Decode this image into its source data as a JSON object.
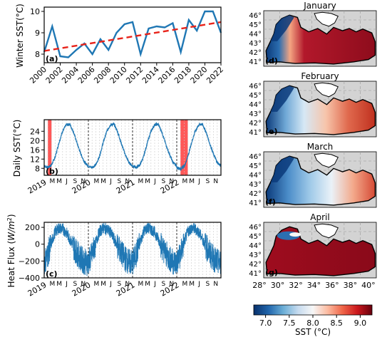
{
  "colors": {
    "line": "#1f77b4",
    "trend": "#e8231a",
    "highlight": "#ff2020",
    "land": "#ffffff",
    "map_bg": "#d3d3d3",
    "sea_warm": "#9e0c1e",
    "sea_cold": "#0b3a7a"
  },
  "chart_data": [
    {
      "type": "line",
      "panel_label": "(a)",
      "ylabel": "Winter SST(°C)",
      "x": [
        2000,
        2001,
        2002,
        2003,
        2004,
        2005,
        2006,
        2007,
        2008,
        2009,
        2010,
        2011,
        2012,
        2013,
        2014,
        2015,
        2016,
        2017,
        2018,
        2019,
        2020,
        2021,
        2022
      ],
      "values": [
        8.1,
        9.3,
        7.9,
        7.85,
        8.2,
        8.5,
        8.0,
        8.7,
        8.2,
        9.0,
        9.4,
        9.5,
        8.0,
        9.2,
        9.3,
        9.25,
        9.45,
        8.1,
        9.6,
        9.1,
        10.0,
        10.0,
        9.0
      ],
      "trend": {
        "x": [
          2000,
          2022
        ],
        "y": [
          8.15,
          9.5
        ]
      },
      "xlim": [
        2000,
        2022
      ],
      "ylim": [
        7.6,
        10.2
      ],
      "xticks": [
        2000,
        2002,
        2004,
        2006,
        2008,
        2010,
        2012,
        2014,
        2016,
        2018,
        2020,
        2022
      ],
      "yticks": [
        8,
        9,
        10
      ]
    },
    {
      "type": "line",
      "panel_label": "(b)",
      "ylabel": "Daily SST(°C)",
      "years": [
        "2019",
        "2020",
        "2021",
        "2022"
      ],
      "months": [
        "M",
        "M",
        "J",
        "S",
        "N"
      ],
      "yticks": [
        8,
        12,
        16,
        20,
        24
      ],
      "ylim": [
        5,
        29
      ],
      "highlight_months": [
        {
          "year": 2019,
          "start_month": 2,
          "end_month": 2
        },
        {
          "year": 2022,
          "start_month": 2,
          "end_month": 3
        }
      ],
      "monthly_mean": [
        9.0,
        8.3,
        9.5,
        13.0,
        19.0,
        24.0,
        26.8,
        27.0,
        23.5,
        18.5,
        14.0,
        10.5
      ]
    },
    {
      "type": "line",
      "panel_label": "(c)",
      "ylabel": "Heat Flux (W/m²)",
      "years": [
        "2019",
        "2020",
        "2021",
        "2022"
      ],
      "months": [
        "M",
        "M",
        "J",
        "S",
        "N"
      ],
      "yticks": [
        -400,
        -200,
        0,
        200
      ],
      "ylim": [
        -400,
        260
      ],
      "monthly_mean": [
        -220,
        -120,
        20,
        150,
        190,
        180,
        140,
        60,
        -30,
        -110,
        -170,
        -210
      ]
    },
    {
      "type": "heatmap",
      "maps": [
        {
          "title": "January",
          "panel_label": "(d)"
        },
        {
          "title": "February",
          "panel_label": "(e)"
        },
        {
          "title": "March",
          "panel_label": "(f)"
        },
        {
          "title": "April",
          "panel_label": "(g)"
        }
      ],
      "lat_ticks": [
        "46°",
        "45°",
        "44°",
        "43°",
        "42°",
        "41°"
      ],
      "lon_ticks": [
        "28°",
        "30°",
        "32°",
        "34°",
        "36°",
        "38°",
        "40°"
      ],
      "colorbar": {
        "label": "SST (°C)",
        "range": [
          6.75,
          9.25
        ],
        "ticks": [
          "7.0",
          "7.5",
          "8.0",
          "8.5",
          "9.0"
        ],
        "stops": [
          "#08306b",
          "#2166ac",
          "#6baed6",
          "#c6dbef",
          "#f7f7f7",
          "#fcbba1",
          "#ef6548",
          "#cb181d",
          "#67000d"
        ]
      }
    }
  ]
}
